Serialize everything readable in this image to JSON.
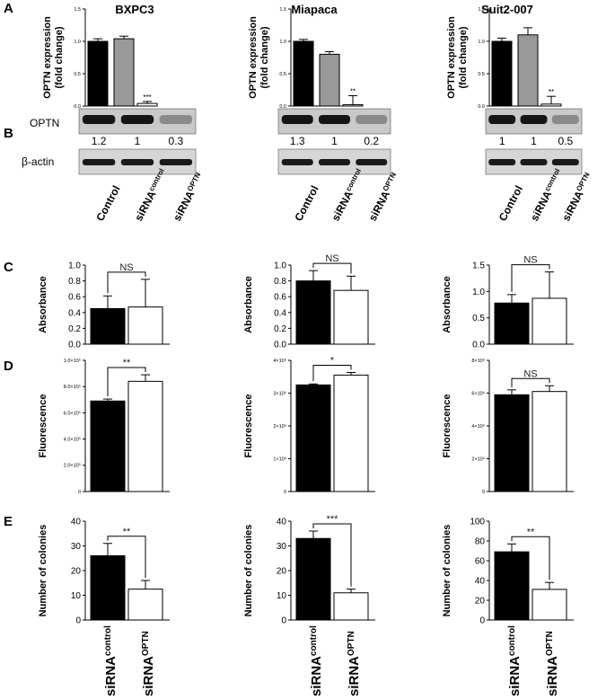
{
  "panel_letters": [
    "A",
    "B",
    "C",
    "D",
    "E"
  ],
  "cell_lines": [
    "BXPC3",
    "Miapaca",
    "Suit2-007"
  ],
  "western": {
    "row_labels": [
      "OPTN",
      "β-actin"
    ],
    "lane_labels": [
      {
        "main": "Control",
        "sup": ""
      },
      {
        "main": "siRNA",
        "sup": "control"
      },
      {
        "main": "siRNA",
        "sup": "OPTN"
      }
    ],
    "quantification": [
      [
        "1.2",
        "1",
        "0.3"
      ],
      [
        "1.3",
        "1",
        "0.2"
      ],
      [
        "1",
        "1",
        "0.5"
      ]
    ]
  },
  "chart_data": [
    {
      "panel": "A",
      "cell_line": "BXPC3",
      "type": "bar",
      "ylabel_lines": [
        "OPTN expression",
        "(fold change)"
      ],
      "ylim": [
        0,
        1.5
      ],
      "yticks": [
        "0.0",
        "0.5",
        "1.0",
        "1.5"
      ],
      "categories": [
        "Control",
        "siRNA control",
        "siRNA OPTN"
      ],
      "values": [
        1.0,
        1.04,
        0.04
      ],
      "errors": [
        0.04,
        0.04,
        0.03
      ],
      "bar_colors": [
        "#000000",
        "#999999",
        "#ffffff"
      ],
      "annotations": [
        {
          "bar": 2,
          "text": "***"
        }
      ]
    },
    {
      "panel": "A",
      "cell_line": "Miapaca",
      "type": "bar",
      "ylabel_lines": [
        "OPTN expression",
        "(fold change)"
      ],
      "ylim": [
        0,
        1.5
      ],
      "yticks": [
        "0.0",
        "0.5",
        "1.0",
        "1.5"
      ],
      "categories": [
        "Control",
        "siRNA control",
        "siRNA OPTN"
      ],
      "values": [
        1.0,
        0.8,
        0.02
      ],
      "errors": [
        0.03,
        0.04,
        0.14
      ],
      "bar_colors": [
        "#000000",
        "#999999",
        "#ffffff"
      ],
      "annotations": [
        {
          "bar": 2,
          "text": "**"
        }
      ]
    },
    {
      "panel": "A",
      "cell_line": "Suit2-007",
      "type": "bar",
      "ylabel_lines": [
        "OPTN expression",
        "(fold change)"
      ],
      "ylim": [
        0,
        1.5
      ],
      "yticks": [
        "0.0",
        "0.5",
        "1.0",
        "1.5"
      ],
      "categories": [
        "Control",
        "siRNA control",
        "siRNA OPTN"
      ],
      "values": [
        1.0,
        1.1,
        0.03
      ],
      "errors": [
        0.05,
        0.11,
        0.12
      ],
      "bar_colors": [
        "#000000",
        "#999999",
        "#ffffff"
      ],
      "annotations": [
        {
          "bar": 2,
          "text": "**"
        }
      ]
    },
    {
      "panel": "C",
      "cell_line": "BXPC3",
      "type": "bar",
      "ylabel_lines": [
        "Absorbance"
      ],
      "ylim": [
        0,
        1.0
      ],
      "yticks": [
        "0.0",
        "0.2",
        "0.4",
        "0.6",
        "0.8",
        "1.0"
      ],
      "categories": [
        "siRNA control",
        "siRNA OPTN"
      ],
      "values": [
        0.45,
        0.47
      ],
      "errors": [
        0.16,
        0.35
      ],
      "bar_colors": [
        "#000000",
        "#ffffff"
      ],
      "significance": "NS"
    },
    {
      "panel": "C",
      "cell_line": "Miapaca",
      "type": "bar",
      "ylabel_lines": [
        "Absorbance"
      ],
      "ylim": [
        0,
        1.0
      ],
      "yticks": [
        "0.0",
        "0.2",
        "0.4",
        "0.6",
        "0.8",
        "1.0"
      ],
      "categories": [
        "siRNA control",
        "siRNA OPTN"
      ],
      "values": [
        0.8,
        0.68
      ],
      "errors": [
        0.13,
        0.18
      ],
      "bar_colors": [
        "#000000",
        "#ffffff"
      ],
      "significance": "NS"
    },
    {
      "panel": "C",
      "cell_line": "Suit2-007",
      "type": "bar",
      "ylabel_lines": [
        "Absorbance"
      ],
      "ylim": [
        0,
        1.5
      ],
      "yticks": [
        "0.0",
        "0.5",
        "1.0",
        "1.5"
      ],
      "categories": [
        "siRNA control",
        "siRNA OPTN"
      ],
      "values": [
        0.78,
        0.87
      ],
      "errors": [
        0.16,
        0.5
      ],
      "bar_colors": [
        "#000000",
        "#ffffff"
      ],
      "significance": "NS"
    },
    {
      "panel": "D",
      "cell_line": "BXPC3",
      "type": "bar",
      "ylabel_lines": [
        "Fluorescence"
      ],
      "ylim": [
        0,
        1000000
      ],
      "yticks": [
        "0",
        "2.0×10⁵",
        "4.0×10⁵",
        "6.0×10⁵",
        "8.0×10⁵",
        "1.0×10⁶"
      ],
      "categories": [
        "siRNA control",
        "siRNA OPTN"
      ],
      "values": [
        690000,
        840000
      ],
      "errors": [
        15000,
        50000
      ],
      "bar_colors": [
        "#000000",
        "#ffffff"
      ],
      "significance": "**"
    },
    {
      "panel": "D",
      "cell_line": "Miapaca",
      "type": "bar",
      "ylabel_lines": [
        "Fluorescence"
      ],
      "ylim": [
        0,
        4000000
      ],
      "yticks": [
        "0",
        "1×10⁶",
        "2×10⁶",
        "3×10⁶",
        "4×10⁶"
      ],
      "categories": [
        "siRNA control",
        "siRNA OPTN"
      ],
      "values": [
        3250000,
        3550000
      ],
      "errors": [
        30000,
        80000
      ],
      "bar_colors": [
        "#000000",
        "#ffffff"
      ],
      "significance": "*"
    },
    {
      "panel": "D",
      "cell_line": "Suit2-007",
      "type": "bar",
      "ylabel_lines": [
        "Fluorescence"
      ],
      "ylim": [
        0,
        8000000
      ],
      "yticks": [
        "0",
        "2×10⁶",
        "4×10⁶",
        "6×10⁶",
        "8×10⁶"
      ],
      "categories": [
        "siRNA control",
        "siRNA OPTN"
      ],
      "values": [
        5900000,
        6100000
      ],
      "errors": [
        300000,
        350000
      ],
      "bar_colors": [
        "#000000",
        "#ffffff"
      ],
      "significance": "NS"
    },
    {
      "panel": "E",
      "cell_line": "BXPC3",
      "type": "bar",
      "ylabel_lines": [
        "Number of colonies"
      ],
      "ylim": [
        0,
        40
      ],
      "yticks": [
        "0",
        "10",
        "20",
        "30",
        "40"
      ],
      "categories": [
        "siRNA control",
        "siRNA OPTN"
      ],
      "values": [
        26,
        12.5
      ],
      "errors": [
        5,
        3.5
      ],
      "bar_colors": [
        "#000000",
        "#ffffff"
      ],
      "significance": "**"
    },
    {
      "panel": "E",
      "cell_line": "Miapaca",
      "type": "bar",
      "ylabel_lines": [
        "Number of colonies"
      ],
      "ylim": [
        0,
        40
      ],
      "yticks": [
        "0",
        "10",
        "20",
        "30",
        "40"
      ],
      "categories": [
        "siRNA control",
        "siRNA OPTN"
      ],
      "values": [
        33,
        11
      ],
      "errors": [
        3,
        1.5
      ],
      "bar_colors": [
        "#000000",
        "#ffffff"
      ],
      "significance": "***"
    },
    {
      "panel": "E",
      "cell_line": "Suit2-007",
      "type": "bar",
      "ylabel_lines": [
        "Number of colonies"
      ],
      "ylim": [
        0,
        100
      ],
      "yticks": [
        "0",
        "20",
        "40",
        "60",
        "80",
        "100"
      ],
      "categories": [
        "siRNA control",
        "siRNA OPTN"
      ],
      "values": [
        69,
        31
      ],
      "errors": [
        8,
        7
      ],
      "bar_colors": [
        "#000000",
        "#ffffff"
      ],
      "significance": "**"
    }
  ]
}
